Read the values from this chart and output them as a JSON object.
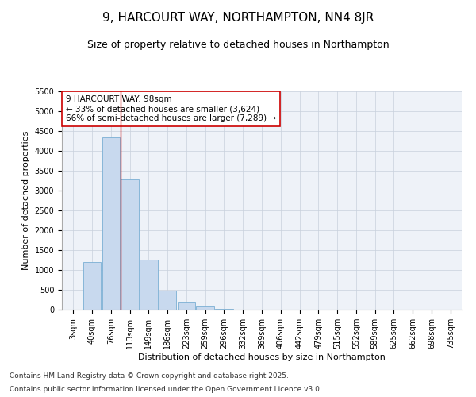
{
  "title": "9, HARCOURT WAY, NORTHAMPTON, NN4 8JR",
  "subtitle": "Size of property relative to detached houses in Northampton",
  "xlabel": "Distribution of detached houses by size in Northampton",
  "ylabel": "Number of detached properties",
  "categories": [
    "3sqm",
    "40sqm",
    "76sqm",
    "113sqm",
    "149sqm",
    "186sqm",
    "223sqm",
    "259sqm",
    "296sqm",
    "332sqm",
    "369sqm",
    "406sqm",
    "442sqm",
    "479sqm",
    "515sqm",
    "552sqm",
    "589sqm",
    "625sqm",
    "662sqm",
    "698sqm",
    "735sqm"
  ],
  "values": [
    0,
    1200,
    4350,
    3280,
    1260,
    480,
    195,
    80,
    30,
    0,
    0,
    0,
    0,
    0,
    0,
    0,
    0,
    0,
    0,
    0,
    0
  ],
  "bar_color": "#c8d9ee",
  "bar_edge_color": "#7aafd4",
  "vline_x_index": 2.5,
  "vline_color": "#cc0000",
  "annotation_text": "9 HARCOURT WAY: 98sqm\n← 33% of detached houses are smaller (3,624)\n66% of semi-detached houses are larger (7,289) →",
  "annotation_box_color": "#ffffff",
  "annotation_box_edge_color": "#cc0000",
  "ylim": [
    0,
    5500
  ],
  "yticks": [
    0,
    500,
    1000,
    1500,
    2000,
    2500,
    3000,
    3500,
    4000,
    4500,
    5000,
    5500
  ],
  "background_color": "#eef2f8",
  "footer_line1": "Contains HM Land Registry data © Crown copyright and database right 2025.",
  "footer_line2": "Contains public sector information licensed under the Open Government Licence v3.0.",
  "title_fontsize": 11,
  "subtitle_fontsize": 9,
  "annotation_fontsize": 7.5,
  "footer_fontsize": 6.5,
  "ylabel_fontsize": 8,
  "xlabel_fontsize": 8,
  "tick_fontsize": 7
}
